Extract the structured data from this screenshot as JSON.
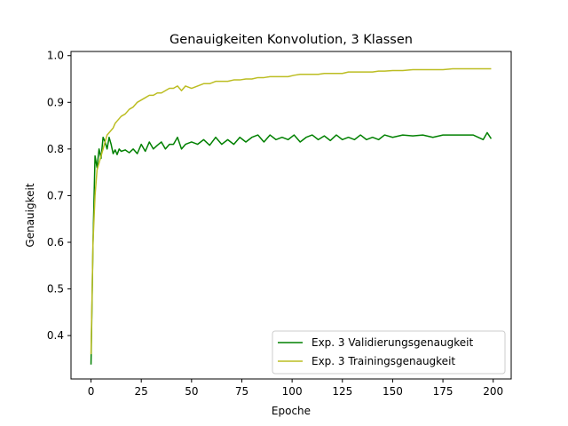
{
  "chart_data": {
    "type": "line",
    "title": "Genauigkeiten Konvolution, 3 Klassen",
    "xlabel": "Epoche",
    "ylabel": "Genauigkeit",
    "xlim": [
      -9.95,
      208.95
    ],
    "ylim": [
      0.307,
      1.009
    ],
    "xticks": [
      0,
      25,
      50,
      75,
      100,
      125,
      150,
      175,
      200
    ],
    "xtick_labels": [
      "0",
      "25",
      "50",
      "75",
      "100",
      "125",
      "150",
      "175",
      "200"
    ],
    "yticks": [
      0.4,
      0.5,
      0.6,
      0.7,
      0.8,
      0.9,
      1.0
    ],
    "ytick_labels": [
      "0.4",
      "0.5",
      "0.6",
      "0.7",
      "0.8",
      "0.9",
      "1.0"
    ],
    "grid": false,
    "legend_position": "lower-right",
    "series": [
      {
        "name": "Exp. 3 Validierungsgenaugkeit",
        "color": "#008000",
        "x": [
          0,
          1,
          2,
          3,
          4,
          5,
          6,
          7,
          8,
          9,
          10,
          11,
          12,
          13,
          14,
          15,
          17,
          19,
          21,
          23,
          25,
          27,
          29,
          31,
          33,
          35,
          37,
          39,
          41,
          43,
          45,
          47,
          50,
          53,
          56,
          59,
          62,
          65,
          68,
          71,
          74,
          77,
          80,
          83,
          86,
          89,
          92,
          95,
          98,
          101,
          104,
          107,
          110,
          113,
          116,
          119,
          122,
          125,
          128,
          131,
          134,
          137,
          140,
          143,
          146,
          150,
          155,
          160,
          165,
          170,
          175,
          180,
          185,
          190,
          195,
          197,
          199
        ],
        "values": [
          0.338,
          0.6,
          0.785,
          0.76,
          0.8,
          0.78,
          0.825,
          0.815,
          0.8,
          0.825,
          0.81,
          0.79,
          0.798,
          0.788,
          0.8,
          0.795,
          0.798,
          0.792,
          0.8,
          0.79,
          0.81,
          0.795,
          0.815,
          0.8,
          0.808,
          0.815,
          0.8,
          0.81,
          0.81,
          0.825,
          0.8,
          0.81,
          0.815,
          0.81,
          0.82,
          0.808,
          0.825,
          0.81,
          0.82,
          0.81,
          0.825,
          0.815,
          0.825,
          0.83,
          0.815,
          0.83,
          0.82,
          0.825,
          0.82,
          0.83,
          0.815,
          0.825,
          0.83,
          0.82,
          0.828,
          0.818,
          0.83,
          0.82,
          0.825,
          0.82,
          0.83,
          0.82,
          0.825,
          0.82,
          0.83,
          0.825,
          0.83,
          0.828,
          0.83,
          0.825,
          0.83,
          0.83,
          0.83,
          0.83,
          0.82,
          0.835,
          0.822
        ]
      },
      {
        "name": "Exp. 3 Trainingsgenaugkeit",
        "color": "#bcbd22",
        "x": [
          0,
          1,
          2,
          3,
          4,
          5,
          6,
          7,
          8,
          9,
          10,
          11,
          12,
          13,
          14,
          15,
          17,
          19,
          21,
          23,
          25,
          27,
          29,
          31,
          33,
          35,
          37,
          39,
          41,
          43,
          45,
          47,
          50,
          53,
          56,
          59,
          62,
          65,
          68,
          71,
          74,
          77,
          80,
          83,
          86,
          89,
          92,
          95,
          98,
          101,
          104,
          107,
          110,
          113,
          116,
          119,
          122,
          125,
          128,
          131,
          134,
          137,
          140,
          143,
          146,
          150,
          155,
          160,
          165,
          170,
          175,
          180,
          185,
          190,
          195,
          197,
          199
        ],
        "values": [
          0.36,
          0.6,
          0.7,
          0.755,
          0.77,
          0.785,
          0.8,
          0.815,
          0.83,
          0.835,
          0.84,
          0.845,
          0.855,
          0.86,
          0.865,
          0.87,
          0.875,
          0.885,
          0.89,
          0.9,
          0.905,
          0.91,
          0.915,
          0.915,
          0.92,
          0.92,
          0.925,
          0.93,
          0.93,
          0.935,
          0.925,
          0.935,
          0.93,
          0.935,
          0.94,
          0.94,
          0.945,
          0.945,
          0.945,
          0.948,
          0.948,
          0.95,
          0.95,
          0.953,
          0.953,
          0.955,
          0.955,
          0.955,
          0.955,
          0.958,
          0.96,
          0.96,
          0.96,
          0.96,
          0.962,
          0.962,
          0.962,
          0.962,
          0.965,
          0.965,
          0.965,
          0.965,
          0.965,
          0.967,
          0.967,
          0.968,
          0.968,
          0.97,
          0.97,
          0.97,
          0.97,
          0.972,
          0.972,
          0.972,
          0.972,
          0.972,
          0.972
        ]
      }
    ]
  }
}
